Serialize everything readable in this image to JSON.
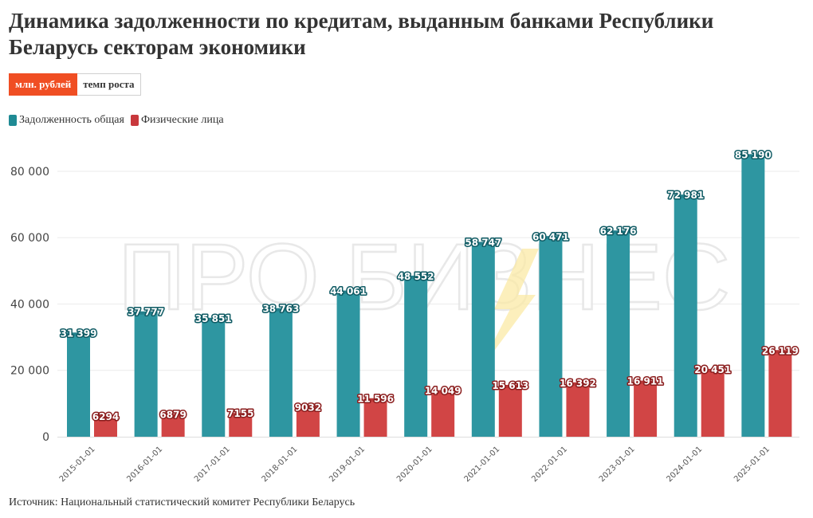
{
  "title": "Динамика задолженности по кредитам, выданным банками Республики Беларусь секторам экономики",
  "toggles": [
    {
      "label": "млн. рублей",
      "active": true
    },
    {
      "label": "темп роста",
      "active": false
    }
  ],
  "watermark": "ПРО БИЗНЕС",
  "source": "Источник: Национальный статистический комитет Республики Беларусь",
  "chart_data": {
    "type": "bar",
    "categories": [
      "2015-01-01",
      "2016-01-01",
      "2017-01-01",
      "2018-01-01",
      "2019-01-01",
      "2020-01-01",
      "2021-01-01",
      "2022-01-01",
      "2023-01-01",
      "2024-01-01",
      "2025-01-01"
    ],
    "series": [
      {
        "name": "Задолженность общая",
        "color": "#2e96a1",
        "label_stroke": "#0e5a63",
        "values": [
          31399,
          37777,
          35851,
          38763,
          44061,
          48552,
          58747,
          60471,
          62176,
          72981,
          85190
        ],
        "labels": [
          "31 399",
          "37 777",
          "35 851",
          "38 763",
          "44 061",
          "48 552",
          "58 747",
          "60 471",
          "62 176",
          "72 981",
          "85 190"
        ]
      },
      {
        "name": "Физические лица",
        "color": "#d14545",
        "label_stroke": "#8a1c1c",
        "values": [
          6294,
          6879,
          7155,
          9032,
          11596,
          14049,
          15613,
          16392,
          16911,
          20451,
          26119
        ],
        "labels": [
          "6294",
          "6879",
          "7155",
          "9032",
          "11 596",
          "14 049",
          "15 613",
          "16 392",
          "16 911",
          "20 451",
          "26 119"
        ]
      }
    ],
    "yticks": [
      0,
      20000,
      40000,
      60000,
      80000
    ],
    "ytick_labels": [
      "0",
      "20 000",
      "40 000",
      "60 000",
      "80 000"
    ],
    "ylim": [
      0,
      86000
    ],
    "grid": true,
    "legend_position": "top-left"
  }
}
